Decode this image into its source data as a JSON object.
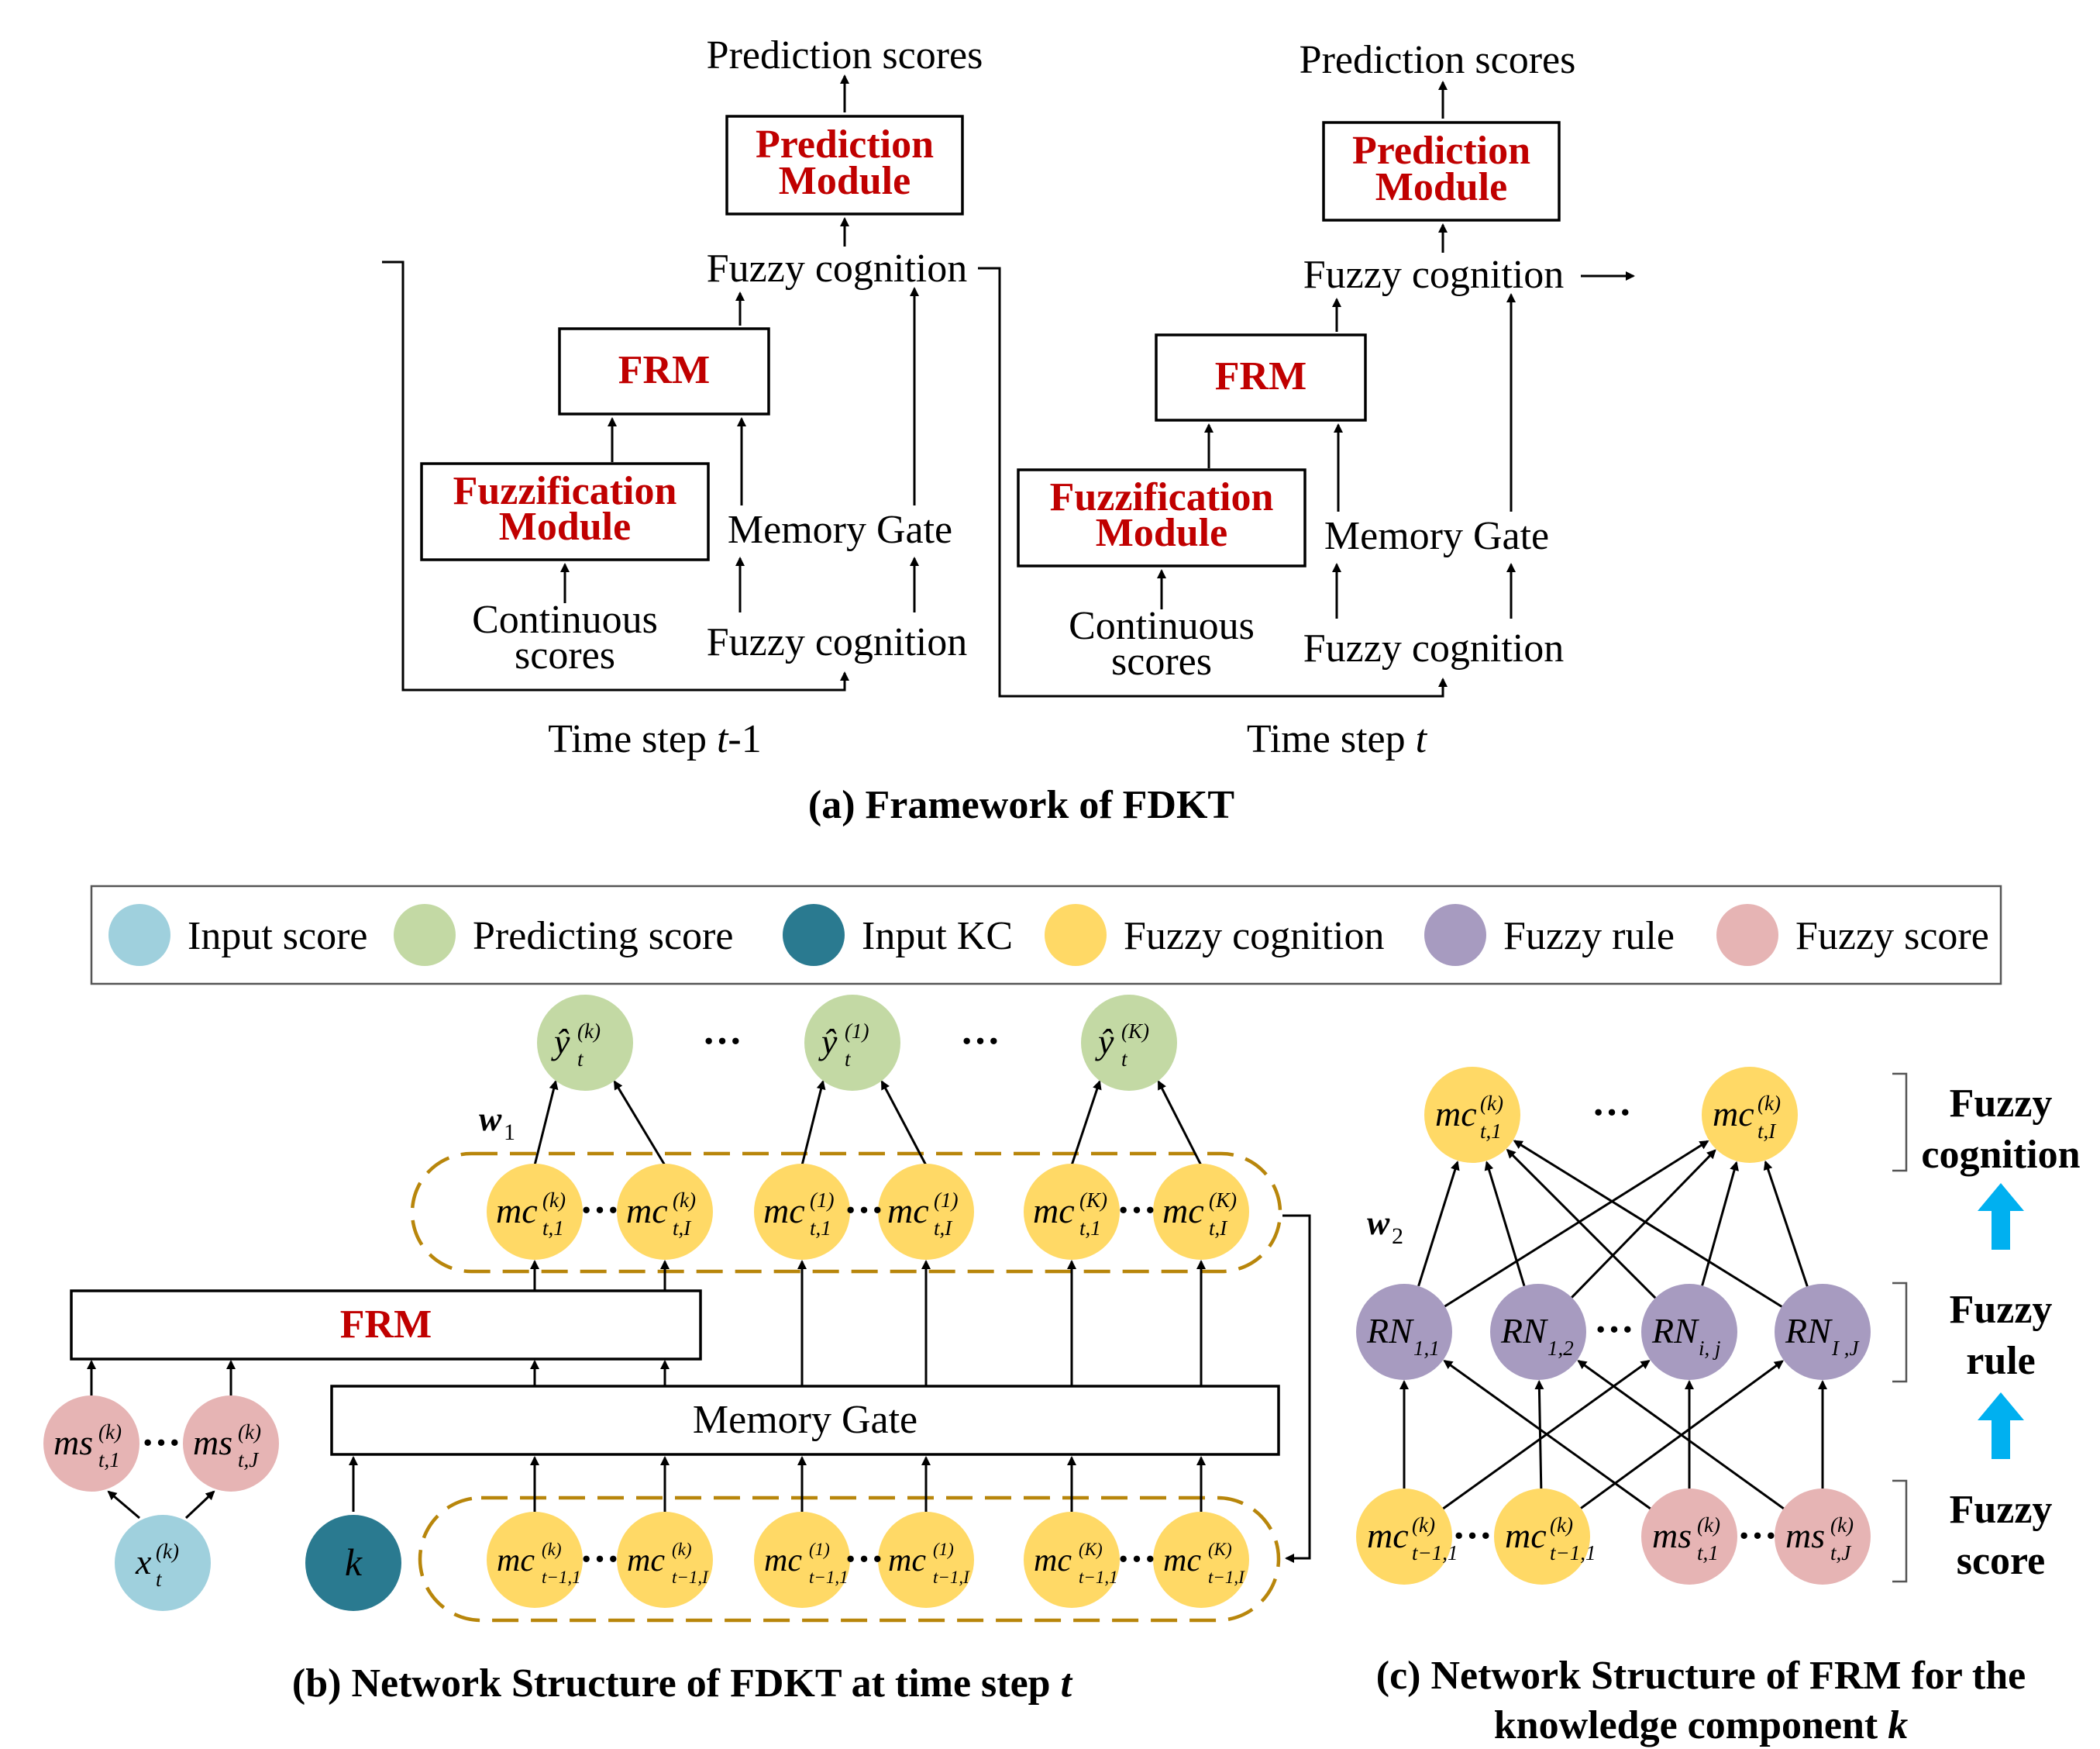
{
  "panel_a": {
    "caption": "(a) Framework of FDKT",
    "left": {
      "prediction_scores": "Prediction scores",
      "prediction_module_l1": "Prediction",
      "prediction_module_l2": "Module",
      "fuzzy_cognition_out": "Fuzzy cognition",
      "frm": "FRM",
      "fuzzification_l1": "Fuzzification",
      "fuzzification_l2": "Module",
      "memory_gate": "Memory Gate",
      "continuous_l1": "Continuous",
      "continuous_l2": "scores",
      "fuzzy_cognition_in": "Fuzzy cognition",
      "time_step_prefix": "Time step ",
      "time_step_var": "t",
      "time_step_suffix": "-1"
    },
    "right": {
      "prediction_scores": "Prediction scores",
      "prediction_module_l1": "Prediction",
      "prediction_module_l2": "Module",
      "fuzzy_cognition_out": "Fuzzy cognition",
      "frm": "FRM",
      "fuzzification_l1": "Fuzzification",
      "fuzzification_l2": "Module",
      "memory_gate": "Memory Gate",
      "continuous_l1": "Continuous",
      "continuous_l2": "scores",
      "fuzzy_cognition_in": "Fuzzy cognition",
      "time_step_prefix": "Time step ",
      "time_step_var": "t",
      "time_step_suffix": ""
    }
  },
  "legend": {
    "items": [
      {
        "label": "Input score",
        "color": "#9fd0dd"
      },
      {
        "label": "Predicting score",
        "color": "#c3d9a4"
      },
      {
        "label": "Input KC",
        "color": "#2a7a90"
      },
      {
        "label": "Fuzzy cognition",
        "color": "#ffd966"
      },
      {
        "label": "Fuzzy rule",
        "color": "#a79bc0"
      },
      {
        "label": "Fuzzy score",
        "color": "#e6b4b4"
      }
    ]
  },
  "panel_b": {
    "caption_prefix": "(b) Network Structure of FDKT at time step ",
    "caption_var": "t",
    "frm": "FRM",
    "memory_gate": "Memory Gate",
    "w1_base": "w",
    "w1_sub": "1",
    "ellipsis": "···",
    "y_base": "ŷ",
    "y_sub": "t",
    "y_sups": [
      "(k)",
      "(1)",
      "(K)"
    ],
    "mc_base": "mc",
    "mc_top_subs": [
      "t,1",
      "t,I",
      "t,1",
      "t,I",
      "t,1",
      "t,I"
    ],
    "mc_top_sups": [
      "(k)",
      "(k)",
      "(1)",
      "(1)",
      "(K)",
      "(K)"
    ],
    "mc_bottom_subs": [
      "t−1,1",
      "t−1,I",
      "t−1,1",
      "t−1,I",
      "t−1,1",
      "t−1,I"
    ],
    "mc_bottom_sups": [
      "(k)",
      "(k)",
      "(1)",
      "(1)",
      "(K)",
      "(K)"
    ],
    "ms_base": "ms",
    "ms_subs": [
      "t,1",
      "t,J"
    ],
    "ms_sup": "(k)",
    "x_base": "x",
    "x_sub": "t",
    "x_sup": "(k)",
    "k_label": "k"
  },
  "panel_c": {
    "caption_l1": "(c) Network Structure of FRM for the",
    "caption_l2_prefix": "knowledge component ",
    "caption_l2_var": "k",
    "w2_base": "w",
    "w2_sub": "2",
    "ellipsis": "···",
    "top_mc_subs": [
      "t,1",
      "t,I"
    ],
    "top_mc_sup": "(k)",
    "rn_base": "RN",
    "rn_subs": [
      "1,1",
      "1,2",
      "i, j",
      "I ,J"
    ],
    "bottom_mc_subs": [
      "t−1,1",
      "t−1,1"
    ],
    "bottom_ms_subs": [
      "t,1",
      "t,J"
    ],
    "bottom_sup": "(k)",
    "side_labels": {
      "cognition_l1": "Fuzzy",
      "cognition_l2": "cognition",
      "rule_l1": "Fuzzy",
      "rule_l2": "rule",
      "score_l1": "Fuzzy",
      "score_l2": "score"
    },
    "arrow_color": "#00b0f0"
  }
}
